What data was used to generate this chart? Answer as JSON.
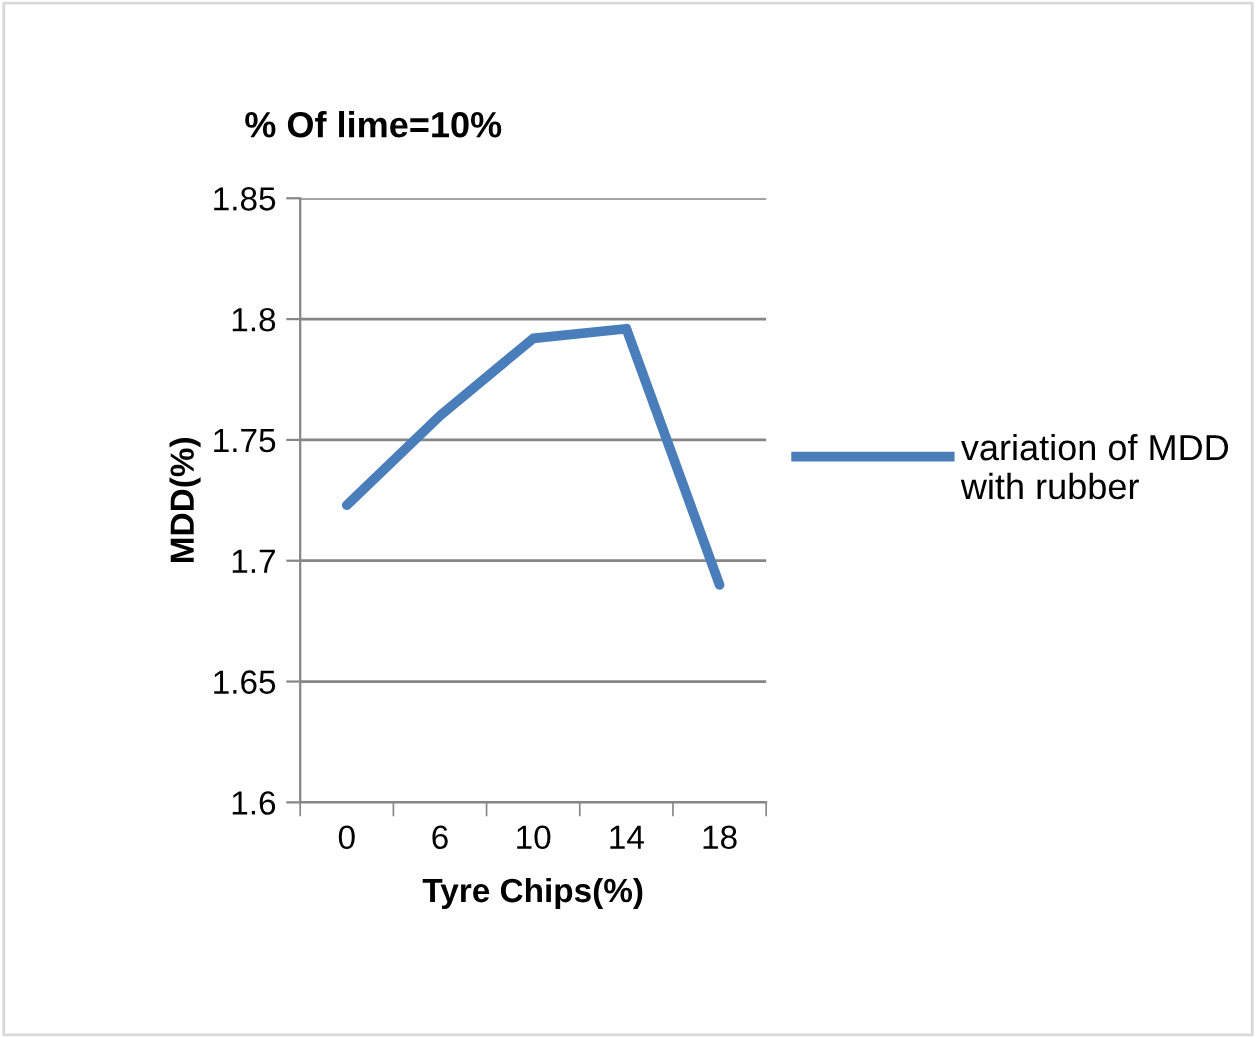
{
  "chart_data": {
    "type": "line",
    "title": "% Of lime=10%",
    "xlabel": "Tyre Chips(%)",
    "ylabel": "MDD(%)",
    "categories": [
      "0",
      "6",
      "10",
      "14",
      "18"
    ],
    "series": [
      {
        "name": "variation of MDD with rubber",
        "color": "#4a7ebb",
        "values": [
          1.723,
          1.76,
          1.792,
          1.796,
          1.69
        ]
      }
    ],
    "ylim": [
      1.6,
      1.85
    ],
    "yticks": [
      1.6,
      1.65,
      1.7,
      1.75,
      1.8,
      1.85
    ],
    "grid": "y",
    "legend": "right",
    "marker": "none",
    "line_style": "solid"
  }
}
